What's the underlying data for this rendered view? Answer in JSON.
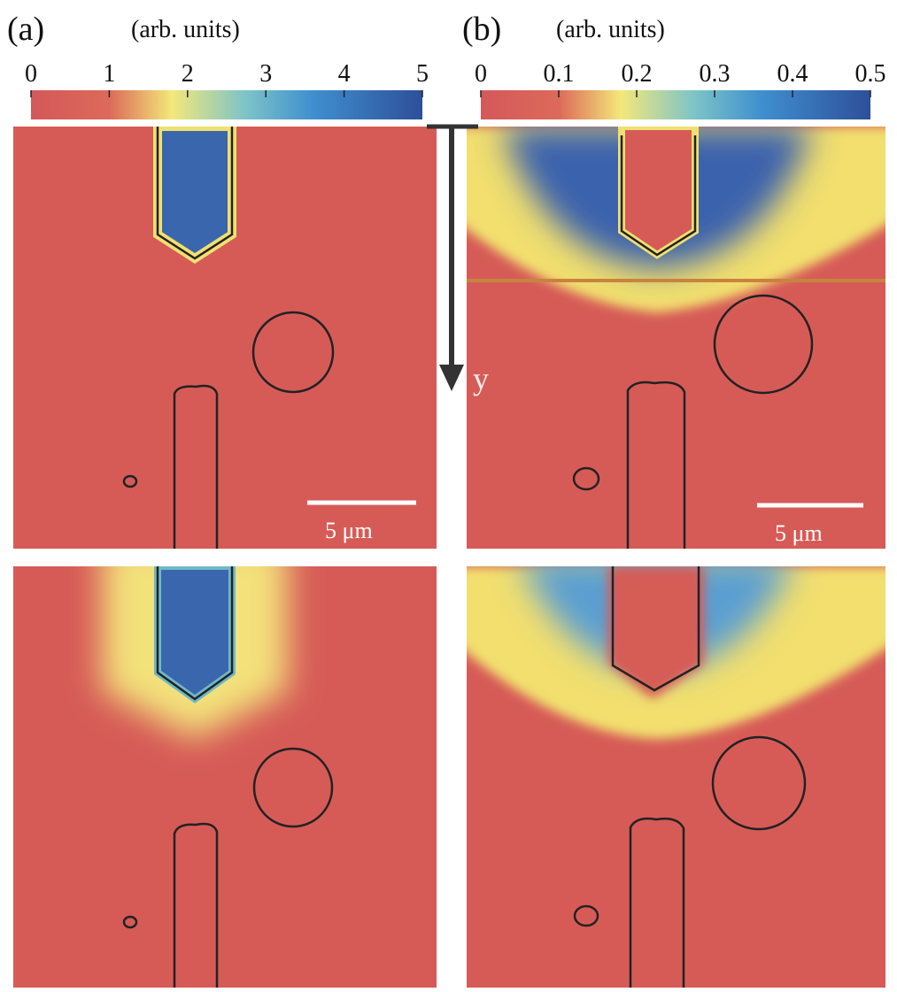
{
  "panels": [
    {
      "label": "(a)",
      "unit": "(arb. units)",
      "colorbar_ticks": [
        "0",
        "1",
        "2",
        "3",
        "4",
        "5"
      ],
      "scale_bar": "5 μm"
    },
    {
      "label": "(b)",
      "unit": "(arb. units)",
      "colorbar_ticks": [
        "0",
        "0.1",
        "0.2",
        "0.3",
        "0.4",
        "0.5"
      ],
      "scale_bar": "5 μm"
    }
  ],
  "axis_label": "y"
}
